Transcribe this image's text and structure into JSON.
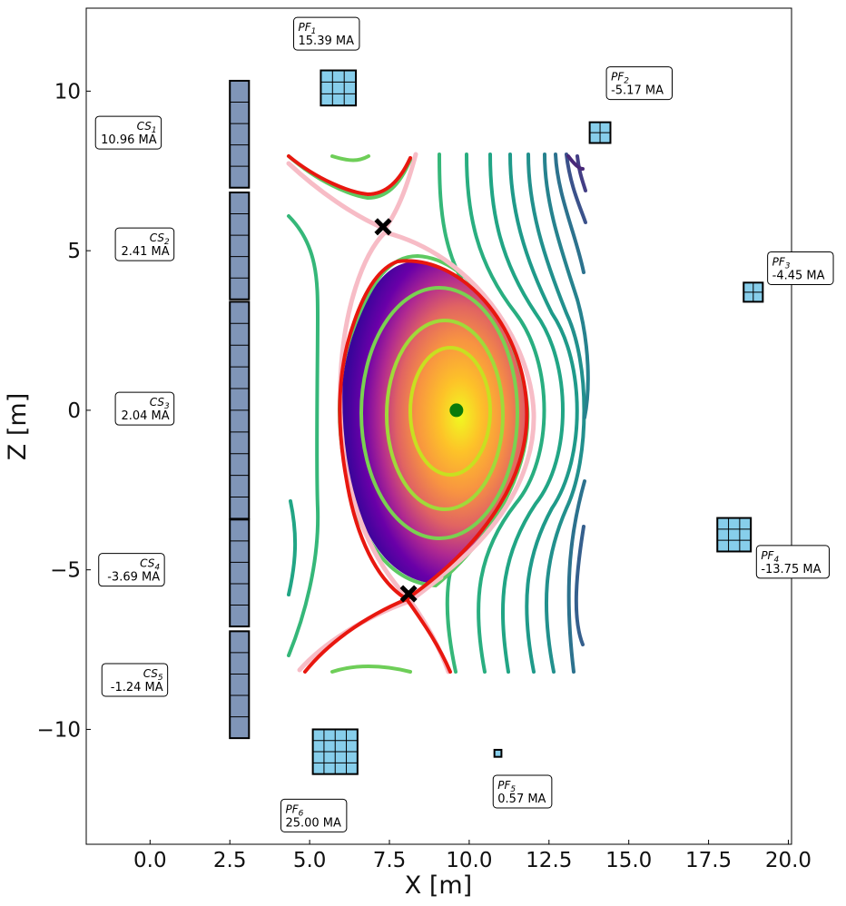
{
  "chart_data": {
    "type": "contour",
    "xlabel": "X [m]",
    "ylabel": "Z [m]",
    "xlim": [
      -2.0,
      20.1
    ],
    "ylim": [
      -13.6,
      12.6
    ],
    "x_ticks": [
      0.0,
      2.5,
      5.0,
      7.5,
      10.0,
      12.5,
      15.0,
      17.5,
      20.0
    ],
    "x_tick_labels": [
      "0.0",
      "2.5",
      "5.0",
      "7.5",
      "10.0",
      "12.5",
      "15.0",
      "17.5",
      "20.0"
    ],
    "y_ticks": [
      10,
      5,
      0,
      -5,
      -10
    ],
    "y_tick_labels": [
      "10",
      "5",
      "0",
      "−5",
      "−10"
    ],
    "grid": false,
    "magnetic_axis": {
      "x": 9.6,
      "z": 0.0,
      "color": "#0a7a0a"
    },
    "x_points": [
      {
        "x": 7.3,
        "z": 5.75
      },
      {
        "x": 8.1,
        "z": -5.75
      }
    ],
    "separatrix_color": "#e8170f",
    "coils": [
      {
        "id": "cs1",
        "kind": "CS",
        "name": "CS",
        "sub": "1",
        "current": "10.96 MA",
        "x": 2.8,
        "z": 8.65,
        "w": 0.6,
        "h": 3.35,
        "cols": 1,
        "rows": 5,
        "color": "#7f95b8",
        "label_x": 0.35,
        "label_z": 8.7,
        "label_align": "right"
      },
      {
        "id": "cs2",
        "kind": "CS",
        "name": "CS",
        "sub": "2",
        "current": "2.41 MA",
        "x": 2.8,
        "z": 5.15,
        "w": 0.6,
        "h": 3.35,
        "cols": 1,
        "rows": 5,
        "color": "#7f95b8",
        "label_x": 0.75,
        "label_z": 5.2,
        "label_align": "right"
      },
      {
        "id": "cs3",
        "kind": "CS",
        "name": "CS",
        "sub": "3",
        "current": "2.04 MA",
        "x": 2.8,
        "z": 0.0,
        "w": 0.6,
        "h": 6.8,
        "cols": 1,
        "rows": 10,
        "color": "#7f95b8",
        "label_x": 0.75,
        "label_z": 0.05,
        "label_align": "right"
      },
      {
        "id": "cs4",
        "kind": "CS",
        "name": "CS",
        "sub": "4",
        "current": "-3.69 MA",
        "x": 2.8,
        "z": -5.1,
        "w": 0.6,
        "h": 3.35,
        "cols": 1,
        "rows": 5,
        "color": "#7f95b8",
        "label_x": 0.45,
        "label_z": -5.0,
        "label_align": "right"
      },
      {
        "id": "cs5",
        "kind": "CS",
        "name": "CS",
        "sub": "5",
        "current": "-1.24 MA",
        "x": 2.8,
        "z": -8.6,
        "w": 0.6,
        "h": 3.35,
        "cols": 1,
        "rows": 5,
        "color": "#7f95b8",
        "label_x": 0.55,
        "label_z": -8.45,
        "label_align": "right"
      },
      {
        "id": "pf1",
        "kind": "PF",
        "name": "PF",
        "sub": "1",
        "current": "15.39 MA",
        "x": 5.9,
        "z": 10.1,
        "w": 1.1,
        "h": 1.1,
        "cols": 3,
        "rows": 3,
        "color": "#87ceeb",
        "label_x": 4.5,
        "label_z": 11.8,
        "label_align": "left"
      },
      {
        "id": "pf2",
        "kind": "PF",
        "name": "PF",
        "sub": "2",
        "current": "-5.17 MA",
        "x": 14.1,
        "z": 8.7,
        "w": 0.65,
        "h": 0.65,
        "cols": 2,
        "rows": 2,
        "color": "#87ceeb",
        "label_x": 14.3,
        "label_z": 10.25,
        "label_align": "left"
      },
      {
        "id": "pf3",
        "kind": "PF",
        "name": "PF",
        "sub": "3",
        "current": "-4.45 MA",
        "x": 18.9,
        "z": 3.7,
        "w": 0.6,
        "h": 0.6,
        "cols": 2,
        "rows": 2,
        "color": "#87ceeb",
        "label_x": 19.35,
        "label_z": 4.45,
        "label_align": "left"
      },
      {
        "id": "pf4",
        "kind": "PF",
        "name": "PF",
        "sub": "4",
        "current": "-13.75 MA",
        "x": 18.3,
        "z": -3.9,
        "w": 1.05,
        "h": 1.05,
        "cols": 3,
        "rows": 3,
        "color": "#87ceeb",
        "label_x": 19.0,
        "label_z": -4.75,
        "label_align": "left"
      },
      {
        "id": "pf5",
        "kind": "PF",
        "name": "PF",
        "sub": "5",
        "current": "0.57 MA",
        "x": 10.9,
        "z": -10.75,
        "w": 0.22,
        "h": 0.22,
        "cols": 1,
        "rows": 1,
        "color": "#87ceeb",
        "label_x": 10.75,
        "label_z": -11.95,
        "label_align": "left"
      },
      {
        "id": "pf6",
        "kind": "PF",
        "name": "PF",
        "sub": "6",
        "current": "25.00 MA",
        "x": 5.8,
        "z": -10.7,
        "w": 1.4,
        "h": 1.4,
        "cols": 4,
        "rows": 4,
        "color": "#87ceeb",
        "label_x": 4.1,
        "label_z": -12.7,
        "label_align": "left"
      }
    ]
  }
}
